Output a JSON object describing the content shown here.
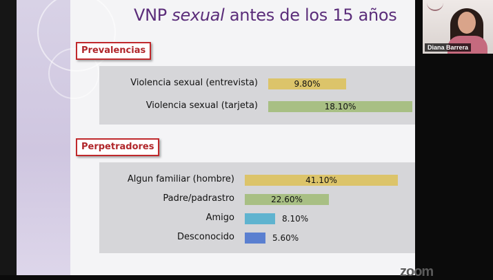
{
  "slide": {
    "title_prefix": "VNP ",
    "title_italic": "sexual",
    "title_suffix": " antes de los 15 años"
  },
  "sections": [
    {
      "label": "Prevalencias",
      "rows": [
        {
          "label": "Violencia sexual (entrevista)",
          "value": 9.8,
          "text": "9.80%",
          "color": "#dcc46a"
        },
        {
          "label": "Violencia sexual (tarjeta)",
          "value": 18.1,
          "text": "18.10%",
          "color": "#a8bf84"
        }
      ]
    },
    {
      "label": "Perpetradores",
      "rows": [
        {
          "label": "Algun familiar (hombre)",
          "value": 41.1,
          "text": "41.10%",
          "color": "#dcc46a"
        },
        {
          "label": "Padre/padrastro",
          "value": 22.6,
          "text": "22.60%",
          "color": "#a8bf84"
        },
        {
          "label": "Amigo",
          "value": 8.1,
          "text": "8.10%",
          "color": "#5fb3cf"
        },
        {
          "label": "Desconocido",
          "value": 5.6,
          "text": "5.60%",
          "color": "#5a7fd0"
        }
      ]
    }
  ],
  "participant": {
    "name": "Diana Barrera"
  },
  "watermark": "zoom"
}
